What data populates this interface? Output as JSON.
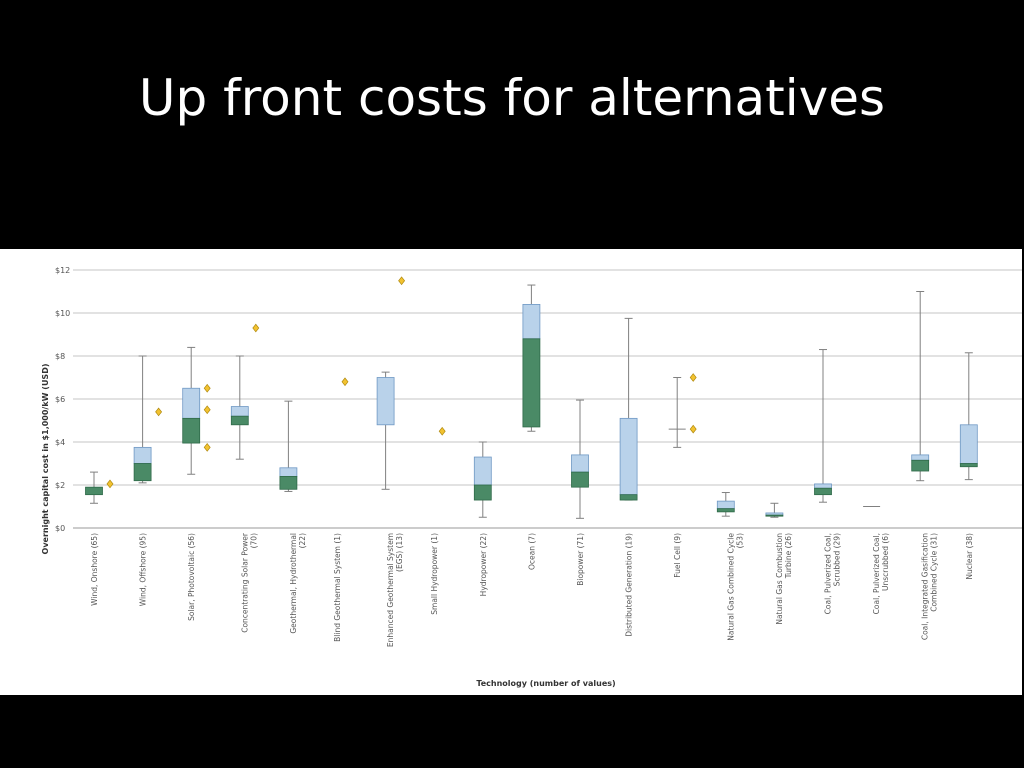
{
  "slide": {
    "title": "Up front costs for alternatives"
  },
  "colors": {
    "upper_box": "#b9d2ea",
    "upper_edge": "#6f98c4",
    "lower_box": "#4a8a66",
    "lower_edge": "#2f6a49",
    "outlier": "#f2c230",
    "outlier_edge": "#b08a10",
    "grid": "#c4c4c4",
    "whisker": "#808080",
    "axis_text": "#555555"
  },
  "chart_data": {
    "type": "box",
    "title": "",
    "xlabel": "Technology (number of values)",
    "ylabel": "Overnight capital cost in $1,000/kW (USD)",
    "ylim": [
      0,
      12
    ],
    "yticks": [
      {
        "value": 0,
        "label": "$0"
      },
      {
        "value": 2,
        "label": "$2"
      },
      {
        "value": 4,
        "label": "$4"
      },
      {
        "value": 6,
        "label": "$6"
      },
      {
        "value": 8,
        "label": "$8"
      },
      {
        "value": 10,
        "label": "$10"
      },
      {
        "value": 12,
        "label": "$12"
      }
    ],
    "grid": true,
    "categories": [
      "Wind, Onshore (65)",
      "Wind, Offshore (95)",
      "Solar, Photovoltaic (56)",
      "Concentrating Solar Power (70)",
      "Geothermal, Hydrothermal (22)",
      "Blind Geothermal System (1)",
      "Enhanced Geothermal System (EGS) (13)",
      "Small Hydropower (1)",
      "Hydropower (22)",
      "Ocean (7)",
      "Biopower (71)",
      "Distributed Generation (19)",
      "Fuel Cell (9)",
      "Natural Gas Combined Cycle (53)",
      "Natural Gas Combustion Turbine (26)",
      "Coal, Pulverized Coal, Scrubbed (29)",
      "Coal, Pulverized Coal, Unscrubbed (6)",
      "Coal, Integrated Gasification Combined Cycle (31)",
      "Nuclear (38)"
    ],
    "label_lines": [
      [
        "Wind, Onshore (65)"
      ],
      [
        "Wind, Offshore (95)"
      ],
      [
        "Solar, Photovoltaic (56)"
      ],
      [
        "Concentrating Solar Power",
        "(70)"
      ],
      [
        "Geothermal, Hydrothermal",
        "(22)"
      ],
      [
        "Blind Geothermal System (1)"
      ],
      [
        "Enhanced Geothermal System",
        "(EGS) (13)"
      ],
      [
        "Small Hydropower (1)"
      ],
      [
        "Hydropower (22)"
      ],
      [
        "Ocean (7)"
      ],
      [
        "Biopower (71)"
      ],
      [
        "Distributed Generation (19)"
      ],
      [
        "Fuel Cell (9)"
      ],
      [
        "Natural Gas Combined Cycle",
        "(53)"
      ],
      [
        "Natural Gas Combustion",
        "Turbine (26)"
      ],
      [
        "Coal, Pulverized Coal,",
        "Scrubbed (29)"
      ],
      [
        "Coal, Pulverized Coal,",
        "Unscrubbed (6)"
      ],
      [
        "Coal, Integrated Gasification",
        "Combined Cycle (31)"
      ],
      [
        "Nuclear (38)"
      ]
    ],
    "boxes": [
      {
        "min": 1.15,
        "q1": 1.55,
        "median": 1.9,
        "q3": 1.9,
        "max": 2.6,
        "outliers": [
          2.05
        ]
      },
      {
        "min": 2.1,
        "q1": 2.2,
        "median": 3.0,
        "q3": 3.75,
        "max": 8.0,
        "outliers": [
          5.4
        ]
      },
      {
        "min": 2.5,
        "q1": 3.95,
        "median": 5.1,
        "q3": 6.5,
        "max": 8.4,
        "outliers": [
          6.5,
          5.5,
          3.75
        ]
      },
      {
        "min": 3.2,
        "q1": 4.8,
        "median": 5.2,
        "q3": 5.65,
        "max": 8.0,
        "outliers": [
          9.3
        ]
      },
      {
        "min": 1.7,
        "q1": 1.8,
        "median": 2.4,
        "q3": 2.8,
        "max": 5.9,
        "outliers": []
      },
      {
        "min": null,
        "q1": null,
        "median": null,
        "q3": null,
        "max": null,
        "outliers": [
          6.8
        ]
      },
      {
        "min": 1.8,
        "q1": 4.8,
        "median": 4.8,
        "q3": 7.0,
        "max": 7.25,
        "outliers": [
          11.5
        ]
      },
      {
        "min": null,
        "q1": null,
        "median": null,
        "q3": null,
        "max": null,
        "outliers": [
          4.5
        ]
      },
      {
        "min": 0.5,
        "q1": 1.3,
        "median": 2.0,
        "q3": 3.3,
        "max": 4.0,
        "outliers": []
      },
      {
        "min": 4.5,
        "q1": 4.7,
        "median": 8.8,
        "q3": 10.4,
        "max": 11.3,
        "outliers": []
      },
      {
        "min": 0.45,
        "q1": 1.9,
        "median": 2.6,
        "q3": 3.4,
        "max": 5.95,
        "outliers": []
      },
      {
        "min": 1.3,
        "q1": 1.3,
        "median": 1.55,
        "q3": 5.1,
        "max": 9.75,
        "outliers": []
      },
      {
        "min": 3.75,
        "q1": 4.6,
        "median": 4.6,
        "q3": 4.6,
        "max": 7.0,
        "outliers": [
          7.0,
          4.6
        ]
      },
      {
        "min": 0.55,
        "q1": 0.75,
        "median": 0.9,
        "q3": 1.25,
        "max": 1.65,
        "outliers": []
      },
      {
        "min": 0.5,
        "q1": 0.55,
        "median": 0.6,
        "q3": 0.7,
        "max": 1.15,
        "outliers": []
      },
      {
        "min": 1.2,
        "q1": 1.55,
        "median": 1.85,
        "q3": 2.05,
        "max": 8.3,
        "outliers": []
      },
      {
        "min": 1.0,
        "q1": 1.0,
        "median": 1.0,
        "q3": 1.0,
        "max": 1.0,
        "outliers": []
      },
      {
        "min": 2.2,
        "q1": 2.65,
        "median": 3.15,
        "q3": 3.4,
        "max": 11.0,
        "outliers": []
      },
      {
        "min": 2.25,
        "q1": 2.85,
        "median": 3.0,
        "q3": 4.8,
        "max": 8.15,
        "outliers": []
      }
    ]
  }
}
